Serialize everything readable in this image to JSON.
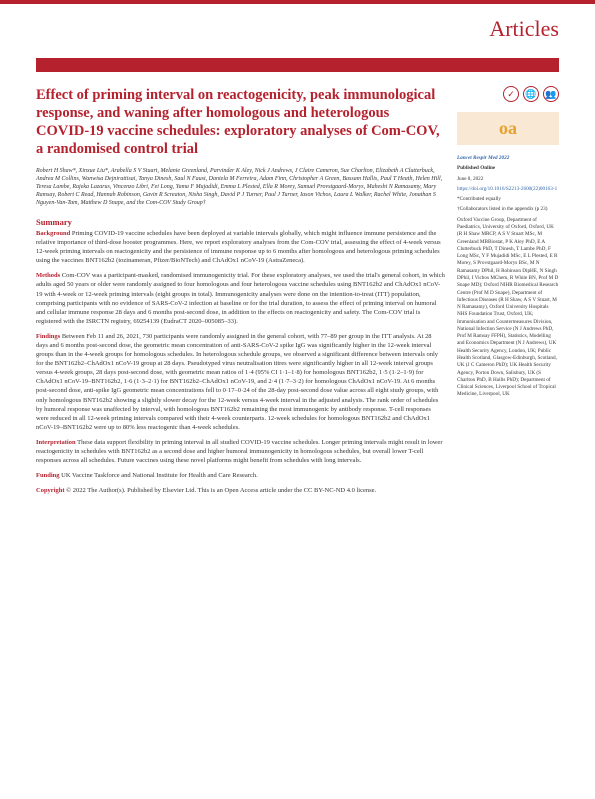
{
  "header": {
    "label": "Articles"
  },
  "title": "Effect of priming interval on reactogenicity, peak immunological response, and waning after homologous and heterologous COVID-19 vaccine schedules: exploratory analyses of Com-COV, a randomised control trial",
  "authors": "Robert H Shaw*, Xinxue Liu*, Arabella S V Stuart, Melanie Greenland, Parvinder K Aley, Nick J Andrews, J Claire Cameron, Sue Charlton, Elizabeth A Clutterbuck, Andrea M Collins, Wanwisa Dejnirattisai, Tanya Dinesh, Saul N Faust, Daniela M Ferreira, Adam Finn, Christopher A Green, Bassam Hallis, Paul T Heath, Helen Hill, Teresa Lambe, Rajeka Lazarus, Vincenzo Libri, Fei Long, Yama F Mujadidi, Emma L Plested, Ella R Morey, Samuel Provstgaard-Morys, Maheshi N Ramasamy, Mary Ramsay, Robert C Read, Hannah Robinson, Gavin R Screaton, Nisha Singh, David P J Turner, Paul J Turner, Iason Vichos, Laura L Walker, Rachel White, Jonathan S Nguyen-Van-Tam, Matthew D Snape, and the Com-COV Study Group†",
  "summary": {
    "heading": "Summary",
    "background": {
      "label": "Background",
      "text": "Priming COVID-19 vaccine schedules have been deployed at variable intervals globally, which might influence immune persistence and the relative importance of third-dose booster programmes. Here, we report exploratory analyses from the Com-COV trial, assessing the effect of 4-week versus 12-week priming intervals on reactogenicity and the persistence of immune response up to 6 months after homologous and heterologous priming schedules using the vaccines BNT162b2 (tozinameran, Pfizer/BioNTech) and ChAdOx1 nCoV-19 (AstraZeneca)."
    },
    "methods": {
      "label": "Methods",
      "text": "Com-COV was a participant-masked, randomised immunogenicity trial. For these exploratory analyses, we used the trial's general cohort, in which adults aged 50 years or older were randomly assigned to four homologous and four heterologous vaccine schedules using BNT162b2 and ChAdOx1 nCoV-19 with 4-week or 12-week priming intervals (eight groups in total). Immunogenicity analyses were done on the intention-to-treat (ITT) population, comprising participants with no evidence of SARS-CoV-2 infection at baseline or for the trial duration, to assess the effect of priming interval on humoral and cellular immune response 28 days and 6 months post-second dose, in addition to the effects on reactogenicity and safety. The Com-COV trial is registered with the ISRCTN registry, 69254139 (EudraCT 2020–005085–33)."
    },
    "findings": {
      "label": "Findings",
      "text": "Between Feb 11 and 26, 2021, 730 participants were randomly assigned in the general cohort, with 77–89 per group in the ITT analysis. At 28 days and 6 months post-second dose, the geometric mean concentration of anti-SARS-CoV-2 spike IgG was significantly higher in the 12-week interval groups than in the 4-week groups for homologous schedules. In heterologous schedule groups, we observed a significant difference between intervals only for the BNT162b2–ChAdOx1 nCoV-19 group at 28 days. Pseudotyped virus neutralisation titres were significantly higher in all 12-week interval groups versus 4-week groups, 28 days post-second dose, with geometric mean ratios of 1·4 (95% CI 1·1–1·8) for homologous BNT162b2, 1·5 (1·2–1·9) for ChAdOx1 nCoV-19–BNT162b2, 1·6 (1·3–2·1) for BNT162b2–ChAdOx1 nCoV-19, and 2·4 (1·7–3·2) for homologous ChAdOx1 nCoV-19. At 6 months post-second dose, anti-spike IgG geometric mean concentrations fell to 0·17–0·24 of the 28-day post-second dose value across all eight study groups, with only homologous BNT162b2 showing a slightly slower decay for the 12-week versus 4-week interval in the adjusted analysis. The rank order of schedules by humoral response was unaffected by interval, with homologous BNT162b2 remaining the most immunogenic by antibody response. T-cell responses were reduced in all 12-week priming intervals compared with their 4-week counterparts. 12-week schedules for homologous BNT162b2 and ChAdOx1 nCoV-19–BNT162b2 were up to 80% less reactogenic than 4-week schedules."
    },
    "interpretation": {
      "label": "Interpretation",
      "text": "These data support flexibility in priming interval in all studied COVID-19 vaccine schedules. Longer priming intervals might result in lower reactogenicity in schedules with BNT162b2 as a second dose and higher humoral immunogenicity in homologous schedules, but overall lower T-cell responses across all schedules. Future vaccines using these novel platforms might benefit from schedules with long intervals."
    },
    "funding": {
      "label": "Funding",
      "text": "UK Vaccine Taskforce and National Institute for Health and Care Research."
    },
    "copyright": {
      "label": "Copyright",
      "text": "© 2022 The Author(s). Published by Elsevier Ltd. This is an Open Access article under the CC BY-NC-ND 4.0 license."
    }
  },
  "sidebar": {
    "oa_label": "oa",
    "journal": "Lancet Respir Med 2022",
    "pub_online": "Published Online",
    "pub_date": "June 8, 2022",
    "doi": "https://doi.org/10.1016/S2213-2600(22)00163-1",
    "contributed": "*Contributed equally",
    "collaborators": "†Collaborators listed in the appendix (p 23)",
    "affiliations": "Oxford Vaccine Group, Department of Paediatrics, University of Oxford, Oxford, UK (R H Shaw MRCP, A S V Stuart MSc, M Greenland MBBiostat, P K Aley PhD, E A Clutterbuck PhD, T Dinesh, T Lambe PhD, F Long MSc, Y F Mujadidi MSc, E L Plested, E R Morey, S Provstgaard-Morys BSc, M N Ramasamy DPhil, H Robinson DipHE, N Singh DPhil, I Vichos MChem, R White BN, Prof M D Snape MD); Oxford NIHR Biomedical Research Centre (Prof M D Snape), Department of Infectious Diseases (R H Shaw, A S V Stuart, M N Ramasamy), Oxford University Hospitals NHS Foundation Trust, Oxford, UK; Immunisation and Countermeasures Division, National Infection Service (N J Andrews PhD, Prof M Ramsay FFPH), Statistics, Modelling and Economics Department (N J Andrews), UK Health Security Agency, London, UK; Public Health Scotland, Glasgow-Edinburgh, Scotland, UK (J C Cameron PhD); UK Health Security Agency, Porton Down, Salisbury, UK (S Charlton PhD, B Hallis PhD); Department of Clinical Sciences, Liverpool School of Tropical Medicine, Liverpool, UK"
  },
  "colors": {
    "accent": "#b5222e",
    "oa_bg": "#f8e8d4",
    "oa_text": "#e8a030",
    "link": "#3366aa",
    "body_text": "#333333"
  }
}
